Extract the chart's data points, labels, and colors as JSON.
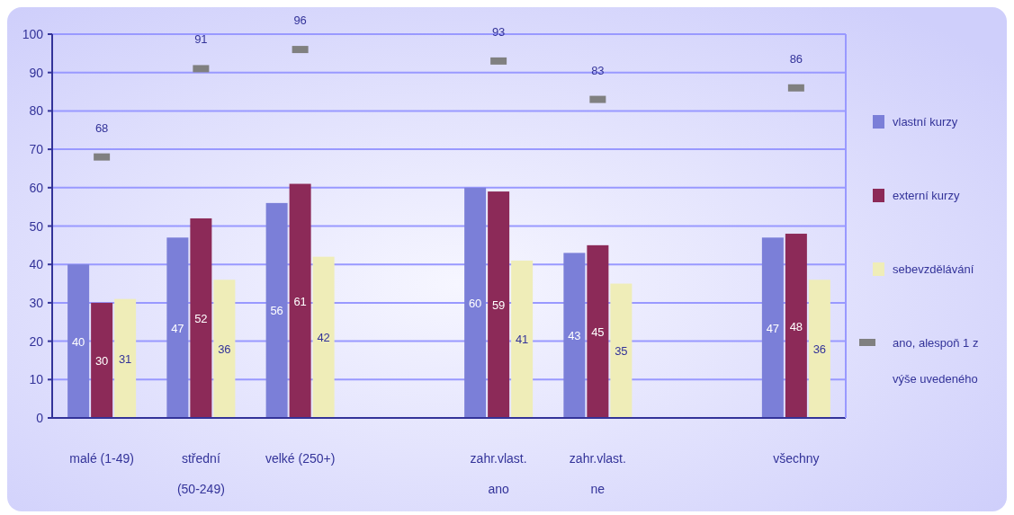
{
  "chart_data": {
    "type": "bar",
    "categories": [
      "malé (1-49)",
      "střední (50-249)",
      "velké (250+)",
      null,
      "zahr.vlast. ano",
      "zahr.vlast. ne",
      null,
      "všechny"
    ],
    "series": [
      {
        "name": "vlastní kurzy",
        "color": "#7b7fd8",
        "values": [
          40,
          47,
          56,
          null,
          60,
          43,
          null,
          47
        ]
      },
      {
        "name": "externí kurzy",
        "color": "#8c2a58",
        "values": [
          30,
          52,
          61,
          null,
          59,
          45,
          null,
          48
        ]
      },
      {
        "name": "sebevzdělávání",
        "color": "#efedb8",
        "values": [
          31,
          36,
          42,
          null,
          41,
          35,
          null,
          36
        ]
      },
      {
        "name": "ano, alespoň 1 z výše uvedeného",
        "type": "scatter",
        "color": "#808080",
        "marker": "square",
        "values": [
          68,
          91,
          96,
          null,
          93,
          83,
          null,
          86
        ]
      }
    ],
    "ylim": [
      0,
      100
    ],
    "yticks": [
      0,
      10,
      20,
      30,
      40,
      50,
      60,
      70,
      80,
      90,
      100
    ],
    "grid": "y",
    "legend": "right",
    "data_labels": true
  }
}
